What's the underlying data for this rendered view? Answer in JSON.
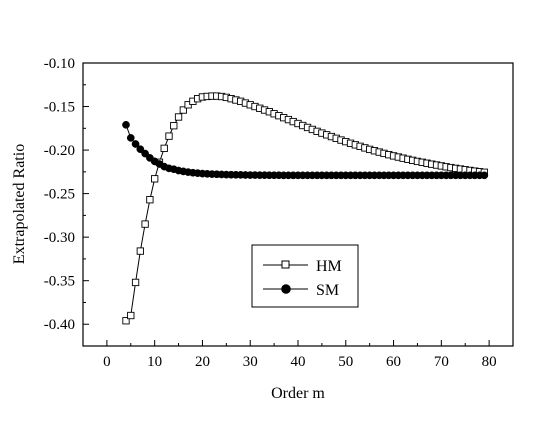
{
  "chart_data": {
    "type": "line",
    "title": "",
    "xlabel": "Order m",
    "ylabel": "Extrapolated Ratio",
    "xlim": [
      -5,
      85
    ],
    "ylim": [
      -0.425,
      -0.1
    ],
    "xticks": [
      0,
      10,
      20,
      30,
      40,
      50,
      60,
      70,
      80
    ],
    "xtick_labels": [
      "0",
      "10",
      "20",
      "30",
      "40",
      "50",
      "60",
      "70",
      "80"
    ],
    "yticks": [
      -0.1,
      -0.15,
      -0.2,
      -0.25,
      -0.3,
      -0.35,
      -0.4
    ],
    "ytick_labels": [
      "-0.10",
      "-0.15",
      "-0.20",
      "-0.25",
      "-0.30",
      "-0.35",
      "-0.40"
    ],
    "grid": false,
    "legend_position": "lower-center",
    "series": [
      {
        "name": "HM",
        "marker": "open-square",
        "x": [
          4,
          5,
          6,
          7,
          8,
          9,
          10,
          11,
          12,
          13,
          14,
          15,
          16,
          17,
          18,
          19,
          20,
          21,
          22,
          23,
          24,
          25,
          26,
          27,
          28,
          29,
          30,
          31,
          32,
          33,
          34,
          35,
          36,
          37,
          38,
          39,
          40,
          41,
          42,
          43,
          44,
          45,
          46,
          47,
          48,
          49,
          50,
          51,
          52,
          53,
          54,
          55,
          56,
          57,
          58,
          59,
          60,
          61,
          62,
          63,
          64,
          65,
          66,
          67,
          68,
          69,
          70,
          71,
          72,
          73,
          74,
          75,
          76,
          77,
          78,
          79
        ],
        "values": [
          -0.396,
          -0.39,
          -0.352,
          -0.316,
          -0.285,
          -0.257,
          -0.233,
          -0.214,
          -0.198,
          -0.184,
          -0.172,
          -0.162,
          -0.154,
          -0.148,
          -0.144,
          -0.141,
          -0.139,
          -0.1384,
          -0.138,
          -0.138,
          -0.1385,
          -0.1395,
          -0.141,
          -0.1425,
          -0.144,
          -0.146,
          -0.148,
          -0.15,
          -0.152,
          -0.154,
          -0.156,
          -0.1583,
          -0.1605,
          -0.1628,
          -0.165,
          -0.1673,
          -0.1695,
          -0.1718,
          -0.174,
          -0.1763,
          -0.1785,
          -0.1805,
          -0.1825,
          -0.1845,
          -0.1865,
          -0.1885,
          -0.1903,
          -0.1922,
          -0.194,
          -0.1957,
          -0.1975,
          -0.1992,
          -0.2008,
          -0.2023,
          -0.2038,
          -0.2053,
          -0.2067,
          -0.208,
          -0.2093,
          -0.2106,
          -0.2118,
          -0.213,
          -0.214,
          -0.2151,
          -0.2162,
          -0.2172,
          -0.2182,
          -0.2192,
          -0.2201,
          -0.221,
          -0.2218,
          -0.2226,
          -0.2234,
          -0.2242,
          -0.2249,
          -0.2255
        ]
      },
      {
        "name": "SM",
        "marker": "filled-circle",
        "x": [
          4,
          5,
          6,
          7,
          8,
          9,
          10,
          11,
          12,
          13,
          14,
          15,
          16,
          17,
          18,
          19,
          20,
          21,
          22,
          23,
          24,
          25,
          26,
          27,
          28,
          29,
          30,
          31,
          32,
          33,
          34,
          35,
          36,
          37,
          38,
          39,
          40,
          41,
          42,
          43,
          44,
          45,
          46,
          47,
          48,
          49,
          50,
          51,
          52,
          53,
          54,
          55,
          56,
          57,
          58,
          59,
          60,
          61,
          62,
          63,
          64,
          65,
          66,
          67,
          68,
          69,
          70,
          71,
          72,
          73,
          74,
          75,
          76,
          77,
          78,
          79
        ],
        "values": [
          -0.171,
          -0.186,
          -0.193,
          -0.199,
          -0.204,
          -0.209,
          -0.213,
          -0.216,
          -0.219,
          -0.221,
          -0.222,
          -0.2235,
          -0.2245,
          -0.2253,
          -0.226,
          -0.2265,
          -0.227,
          -0.2273,
          -0.2276,
          -0.2278,
          -0.228,
          -0.2282,
          -0.2283,
          -0.2284,
          -0.2285,
          -0.2286,
          -0.2287,
          -0.2287,
          -0.2288,
          -0.2288,
          -0.2289,
          -0.2289,
          -0.2289,
          -0.229,
          -0.229,
          -0.229,
          -0.229,
          -0.229,
          -0.229,
          -0.229,
          -0.229,
          -0.229,
          -0.229,
          -0.229,
          -0.229,
          -0.229,
          -0.229,
          -0.229,
          -0.229,
          -0.229,
          -0.229,
          -0.229,
          -0.229,
          -0.229,
          -0.229,
          -0.229,
          -0.229,
          -0.229,
          -0.229,
          -0.229,
          -0.229,
          -0.229,
          -0.229,
          -0.229,
          -0.229,
          -0.229,
          -0.229,
          -0.229,
          -0.229,
          -0.229,
          -0.229,
          -0.229,
          -0.229,
          -0.229,
          -0.229,
          -0.229
        ]
      }
    ]
  }
}
